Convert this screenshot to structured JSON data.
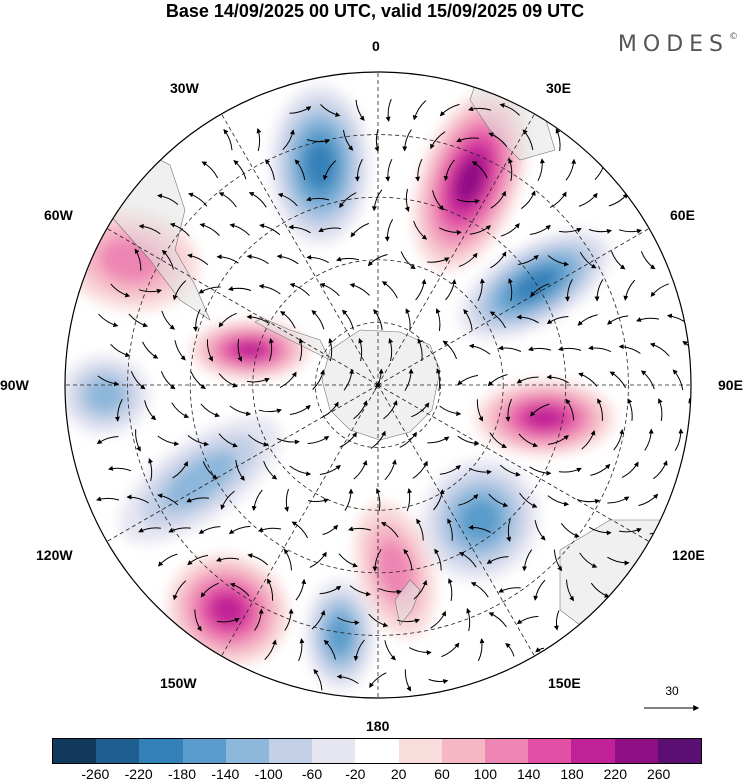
{
  "title": "Base 14/09/2025 00 UTC, valid 15/09/2025 09 UTC",
  "brand": "MODES",
  "brand_mark": "©",
  "longitude_labels": {
    "lon0": "0",
    "lon30e": "30E",
    "lon60e": "60E",
    "lon90e": "90E",
    "lon120e": "120E",
    "lon150e": "150E",
    "lon180": "180",
    "lon150w": "150W",
    "lon120w": "120W",
    "lon90w": "90W",
    "lon60w": "60W",
    "lon30w": "30W"
  },
  "vector_reference": "30",
  "colorbar": {
    "colors": [
      "#123a5c",
      "#1f5f8f",
      "#3480b8",
      "#5a9ccb",
      "#8db7db",
      "#c2cfe6",
      "#e6e6f2",
      "#ffffff",
      "#f9dcdc",
      "#f5b6c6",
      "#ee86b3",
      "#e150a4",
      "#c12196",
      "#8f0f84",
      "#5b0f73"
    ],
    "tick_labels": [
      "-260",
      "-220",
      "-180",
      "-140",
      "-100",
      "-60",
      "-20",
      "20",
      "60",
      "100",
      "140",
      "180",
      "220",
      "260"
    ]
  },
  "anomaly_centers": [
    {
      "name": "positive-anomaly-30e",
      "sign": "positive",
      "value": 240
    },
    {
      "name": "negative-anomaly-60e",
      "sign": "negative",
      "value": -190
    },
    {
      "name": "positive-anomaly-90e",
      "sign": "positive",
      "value": 180
    },
    {
      "name": "negative-anomaly-120e",
      "sign": "negative",
      "value": -170
    },
    {
      "name": "positive-anomaly-150e",
      "sign": "positive",
      "value": 120
    },
    {
      "name": "negative-anomaly-180",
      "sign": "negative",
      "value": -140
    },
    {
      "name": "positive-anomaly-150w",
      "sign": "positive",
      "value": 200
    },
    {
      "name": "negative-anomaly-120w",
      "sign": "negative",
      "value": -130
    },
    {
      "name": "negative-anomaly-90w",
      "sign": "negative",
      "value": -100
    },
    {
      "name": "positive-anomaly-75w",
      "sign": "positive",
      "value": 210
    },
    {
      "name": "positive-anomaly-60w",
      "sign": "positive",
      "value": 110
    },
    {
      "name": "negative-anomaly-20w",
      "sign": "negative",
      "value": -200
    }
  ]
}
